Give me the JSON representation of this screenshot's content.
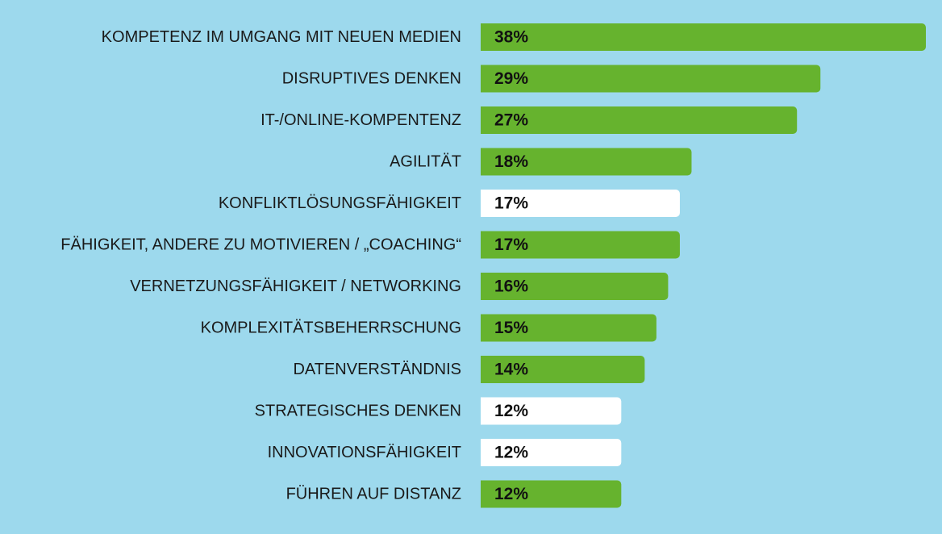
{
  "chart_data": {
    "type": "bar",
    "orientation": "horizontal",
    "categories": [
      "KOMPETENZ IM UMGANG MIT NEUEN MEDIEN",
      "DISRUPTIVES DENKEN",
      "IT-/ONLINE-KOMPENTENZ",
      "AGILITÄT",
      "KONFLIKTLÖSUNGSFÄHIGKEIT",
      "FÄHIGKEIT, ANDERE ZU MOTIVIEREN / „COACHING“",
      "VERNETZUNGSFÄHIGKEIT / NETWORKING",
      "KOMPLEXITÄTSBEHERRSCHUNG",
      "DATENVERSTÄNDNIS",
      "STRATEGISCHES DENKEN",
      "INNOVATIONSFÄHIGKEIT",
      "FÜHREN AUF DISTANZ"
    ],
    "values": [
      38,
      29,
      27,
      18,
      17,
      17,
      16,
      15,
      14,
      12,
      12,
      12
    ],
    "value_labels": [
      "38%",
      "29%",
      "27%",
      "18%",
      "17%",
      "17%",
      "16%",
      "15%",
      "14%",
      "12%",
      "12%",
      "12%"
    ],
    "highlighted": [
      true,
      true,
      true,
      true,
      false,
      true,
      true,
      true,
      true,
      false,
      false,
      true
    ],
    "xlim": [
      0,
      38
    ],
    "grid": false,
    "legend": "none",
    "title": "",
    "xlabel": "",
    "ylabel": ""
  },
  "colors": {
    "background": "#9dd9ed",
    "bar_highlight": "#66b32e",
    "bar_default": "#ffffff",
    "label_text": "#1a1a1a",
    "value_text": "#111111"
  }
}
